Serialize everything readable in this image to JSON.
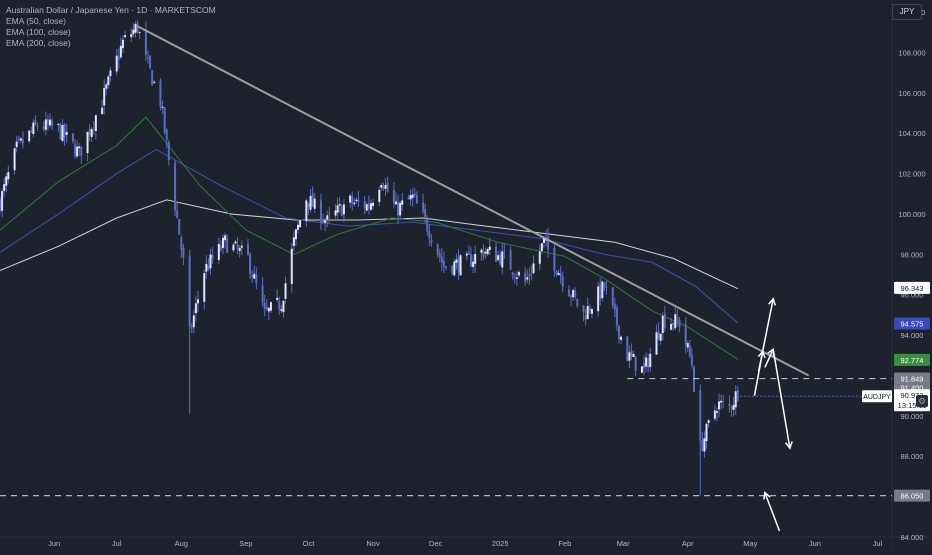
{
  "legend": {
    "title": "Australian Dollar / Japanese Yen · 1D · MARKETSCOM",
    "ema50": "EMA (50, close)",
    "ema100": "EMA (100, close)",
    "ema200": "EMA (200, close)"
  },
  "currency": "JPY",
  "settings_icon": "gear-icon",
  "chart_data": {
    "type": "candlestick",
    "symbol": "AUDJPY",
    "interval": "1D",
    "ylim": [
      84,
      110.6
    ],
    "y_ticks": [
      "84.000",
      "86.000",
      "88.000",
      "90.000",
      "92.000",
      "94.000",
      "96.000",
      "98.000",
      "100.000",
      "102.000",
      "104.000",
      "106.000",
      "108.000",
      "110.000"
    ],
    "y_tick_values": [
      84,
      86,
      88,
      90,
      92,
      94,
      96,
      98,
      100,
      102,
      104,
      106,
      108,
      110
    ],
    "x_ticks": [
      {
        "label": "Jun",
        "date": "2024-06-01"
      },
      {
        "label": "Jul",
        "date": "2024-07-01"
      },
      {
        "label": "Aug",
        "date": "2024-08-01"
      },
      {
        "label": "Sep",
        "date": "2024-09-01"
      },
      {
        "label": "Oct",
        "date": "2024-10-01"
      },
      {
        "label": "Nov",
        "date": "2024-11-01"
      },
      {
        "label": "Dec",
        "date": "2024-12-01"
      },
      {
        "label": "2025",
        "date": "2025-01-01"
      },
      {
        "label": "Feb",
        "date": "2025-02-01"
      },
      {
        "label": "Mar",
        "date": "2025-03-01"
      },
      {
        "label": "Apr",
        "date": "2025-04-01"
      },
      {
        "label": "May",
        "date": "2025-05-01"
      },
      {
        "label": "Jun",
        "date": "2025-06-01"
      },
      {
        "label": "Jul",
        "date": "2025-07-01"
      }
    ],
    "x_range": [
      "2024-05-06",
      "2025-07-08"
    ],
    "price_keypoints": [
      [
        "2024-05-06",
        100.6
      ],
      [
        "2024-05-14",
        103.2
      ],
      [
        "2024-05-24",
        104.4
      ],
      [
        "2024-06-03",
        104.2
      ],
      [
        "2024-06-13",
        103.0
      ],
      [
        "2024-06-24",
        105.6
      ],
      [
        "2024-07-04",
        108.5
      ],
      [
        "2024-07-11",
        109.3
      ],
      [
        "2024-07-15",
        107.6
      ],
      [
        "2024-07-22",
        105.6
      ],
      [
        "2024-07-28",
        101.2
      ],
      [
        "2024-08-02",
        97.6
      ],
      [
        "2024-08-05",
        94.0
      ],
      [
        "2024-08-12",
        97.2
      ],
      [
        "2024-08-22",
        98.6
      ],
      [
        "2024-09-02",
        97.8
      ],
      [
        "2024-09-10",
        95.0
      ],
      [
        "2024-09-18",
        95.6
      ],
      [
        "2024-09-24",
        98.6
      ],
      [
        "2024-09-30",
        100.8
      ],
      [
        "2024-10-10",
        99.6
      ],
      [
        "2024-10-20",
        100.6
      ],
      [
        "2024-10-30",
        100.4
      ],
      [
        "2024-11-05",
        101.8
      ],
      [
        "2024-11-12",
        100.2
      ],
      [
        "2024-11-20",
        100.8
      ],
      [
        "2024-11-28",
        99.2
      ],
      [
        "2024-12-05",
        97.4
      ],
      [
        "2024-12-16",
        97.6
      ],
      [
        "2024-12-24",
        98.2
      ],
      [
        "2025-01-03",
        97.8
      ],
      [
        "2025-01-13",
        96.6
      ],
      [
        "2025-01-22",
        98.6
      ],
      [
        "2025-02-01",
        96.6
      ],
      [
        "2025-02-10",
        95.0
      ],
      [
        "2025-02-20",
        96.4
      ],
      [
        "2025-03-03",
        93.0
      ],
      [
        "2025-03-11",
        92.2
      ],
      [
        "2025-03-20",
        94.8
      ],
      [
        "2025-03-28",
        94.6
      ],
      [
        "2025-04-03",
        92.6
      ],
      [
        "2025-04-07",
        88.4
      ],
      [
        "2025-04-10",
        89.2
      ],
      [
        "2025-04-15",
        90.6
      ],
      [
        "2025-04-21",
        90.4
      ],
      [
        "2025-04-25",
        91.2
      ]
    ],
    "ema50": [
      [
        "2024-05-06",
        99.2
      ],
      [
        "2024-06-03",
        101.6
      ],
      [
        "2024-07-01",
        103.4
      ],
      [
        "2024-07-15",
        104.8
      ],
      [
        "2024-08-10",
        101.4
      ],
      [
        "2024-09-01",
        99.2
      ],
      [
        "2024-09-24",
        98.0
      ],
      [
        "2024-10-15",
        99.0
      ],
      [
        "2024-11-10",
        99.8
      ],
      [
        "2024-12-01",
        99.6
      ],
      [
        "2024-12-31",
        98.6
      ],
      [
        "2025-02-01",
        97.9
      ],
      [
        "2025-02-20",
        96.8
      ],
      [
        "2025-03-15",
        95.2
      ],
      [
        "2025-04-01",
        94.4
      ],
      [
        "2025-04-25",
        92.8
      ]
    ],
    "ema100": [
      [
        "2024-05-06",
        98.1
      ],
      [
        "2024-06-03",
        100.0
      ],
      [
        "2024-07-01",
        102.0
      ],
      [
        "2024-07-20",
        103.2
      ],
      [
        "2024-08-20",
        101.4
      ],
      [
        "2024-09-20",
        99.8
      ],
      [
        "2024-10-20",
        99.4
      ],
      [
        "2024-11-20",
        99.6
      ],
      [
        "2024-12-20",
        99.2
      ],
      [
        "2025-01-20",
        98.8
      ],
      [
        "2025-02-20",
        98.0
      ],
      [
        "2025-03-15",
        97.6
      ],
      [
        "2025-04-05",
        96.4
      ],
      [
        "2025-04-25",
        94.6
      ]
    ],
    "ema200": [
      [
        "2024-05-06",
        97.2
      ],
      [
        "2024-06-03",
        98.4
      ],
      [
        "2024-07-01",
        99.8
      ],
      [
        "2024-07-25",
        100.7
      ],
      [
        "2024-08-25",
        100.0
      ],
      [
        "2024-09-25",
        99.7
      ],
      [
        "2024-10-25",
        99.7
      ],
      [
        "2024-11-25",
        99.8
      ],
      [
        "2024-12-25",
        99.4
      ],
      [
        "2025-01-25",
        99.0
      ],
      [
        "2025-02-25",
        98.6
      ],
      [
        "2025-03-25",
        97.8
      ],
      [
        "2025-04-25",
        96.3
      ]
    ],
    "trendline": [
      [
        "2024-07-11",
        109.3
      ],
      [
        "2025-05-29",
        92.0
      ]
    ],
    "support_lines": [
      {
        "y": 91.849,
        "from": "2025-03-03"
      },
      {
        "y": 86.05,
        "from": "2024-05-06"
      }
    ],
    "price_labels": [
      {
        "label": "96.343",
        "y": 96.343,
        "bg": "#ffffff",
        "fg": "#131722"
      },
      {
        "label": "94.575",
        "y": 94.575,
        "bg": "#3848b8",
        "fg": "#ffffff"
      },
      {
        "label": "92.774",
        "y": 92.774,
        "bg": "#388e3c",
        "fg": "#ffffff"
      },
      {
        "label": "91.849",
        "y": 91.849,
        "bg": "#787b86",
        "fg": "#ffffff"
      },
      {
        "label": "91.400",
        "y": 91.4,
        "bg": "#787b86",
        "fg": "#ffffff"
      },
      {
        "label": "86.050",
        "y": 86.05,
        "bg": "#787b86",
        "fg": "#ffffff"
      }
    ],
    "last_price": {
      "symbol": "AUDJPY",
      "price": "90.973",
      "countdown": "13:15:11",
      "y": 90.973
    },
    "arrows": [
      {
        "from": [
          "2025-05-05",
          92.2
        ],
        "to": [
          "2025-05-12",
          95.8
        ]
      },
      {
        "from": [
          "2025-05-03",
          91.0
        ],
        "to": [
          "2025-05-07",
          93.2
        ]
      },
      {
        "from": [
          "2025-05-08",
          92.4
        ],
        "to": [
          "2025-05-12",
          93.3
        ]
      },
      {
        "from": [
          "2025-05-12",
          93.3
        ],
        "to": [
          "2025-05-20",
          88.4
        ]
      },
      {
        "from": [
          "2025-05-15",
          84.3
        ],
        "to": [
          "2025-05-08",
          86.2
        ]
      }
    ],
    "colors": {
      "background": "#1e222d",
      "candle": "#5c6bc0",
      "ema50": "#2e7d32",
      "ema100": "#3f51b5",
      "ema200": "#d1d4dc",
      "trendline": "#9e9e9e",
      "annotations": "#ffffff"
    }
  }
}
